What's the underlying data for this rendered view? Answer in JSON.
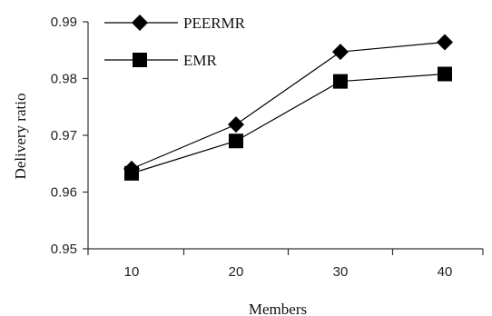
{
  "chart_data": {
    "type": "line",
    "xlabel": "Members",
    "ylabel": "Delivery ratio",
    "categories": [
      "10",
      "20",
      "30",
      "40"
    ],
    "x": [
      10,
      20,
      30,
      40
    ],
    "ylim": [
      0.95,
      0.99
    ],
    "yticks": [
      "0.95",
      "0.96",
      "0.97",
      "0.98",
      "0.99"
    ],
    "grid": false,
    "legend": "top-left",
    "series": [
      {
        "name": "PEERMR",
        "marker": "diamond",
        "values": [
          0.9641,
          0.9719,
          0.9847,
          0.9864
        ]
      },
      {
        "name": "EMR",
        "marker": "square",
        "values": [
          0.9633,
          0.969,
          0.9795,
          0.9808
        ]
      }
    ]
  },
  "colors": {
    "line": "#000000",
    "marker": "#000000",
    "axis": "#333333"
  }
}
